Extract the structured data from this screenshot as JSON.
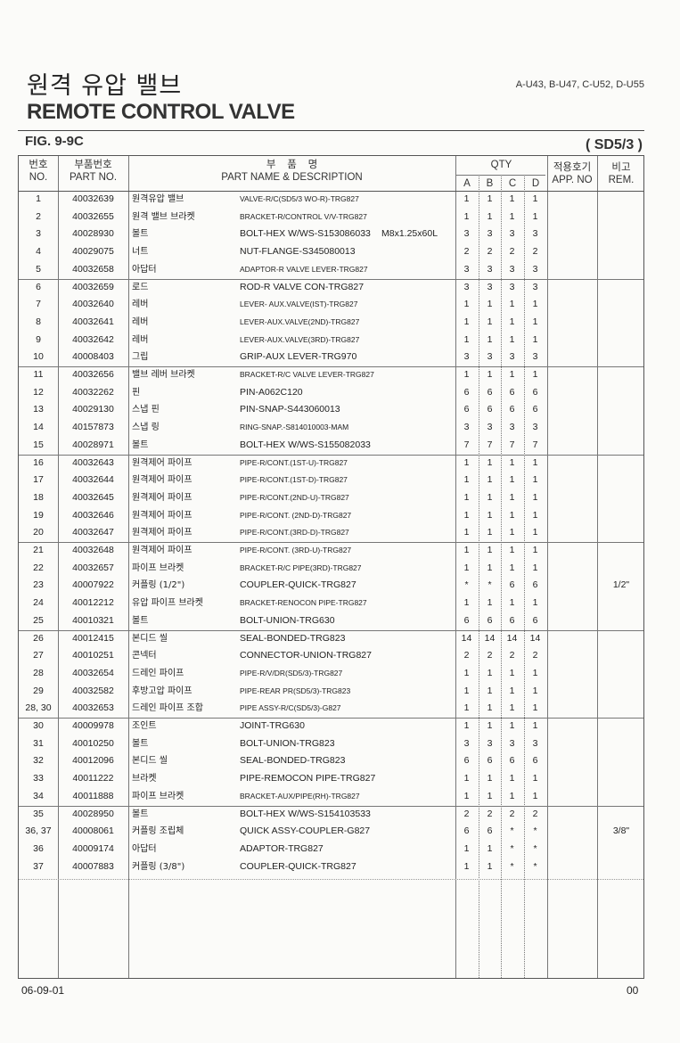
{
  "header": {
    "title_ko": "원격 유압 밸브",
    "title_en": "REMOTE CONTROL VALVE",
    "models": "A-U43, B-U47, C-U52, D-U55",
    "figure": "FIG. 9-9C",
    "variant": "( SD5/3 )"
  },
  "columns": {
    "no_ko": "번호",
    "no_en": "NO.",
    "part_ko": "부품번호",
    "part_en": "PART NO.",
    "name_ko": "부    품    명",
    "name_en": "PART NAME & DESCRIPTION",
    "qty": "QTY",
    "a": "A",
    "b": "B",
    "c": "C",
    "d": "D",
    "app_ko": "적용호기",
    "app_en": "APP. NO",
    "rem_ko": "비고",
    "rem_en": "REM."
  },
  "rows": [
    [
      "1",
      "40032639",
      "원격유압 밸브",
      "VALVE-R/C(SD5/3 WO-R)-TRG827",
      "",
      "1",
      "1",
      "1",
      "1",
      ""
    ],
    [
      "2",
      "40032655",
      "원격 밸브 브라켓",
      "BRACKET-R/CONTROL V/V-TRG827",
      "",
      "1",
      "1",
      "1",
      "1",
      ""
    ],
    [
      "3",
      "40028930",
      "볼트",
      "BOLT-HEX W/WS-S153086033",
      "M8x1.25x60L",
      "3",
      "3",
      "3",
      "3",
      ""
    ],
    [
      "4",
      "40029075",
      "너트",
      "NUT-FLANGE-S345080013",
      "",
      "2",
      "2",
      "2",
      "2",
      ""
    ],
    [
      "5",
      "40032658",
      "아답터",
      "ADAPTOR-R VALVE LEVER-TRG827",
      "",
      "3",
      "3",
      "3",
      "3",
      ""
    ],
    [
      "6",
      "40032659",
      "로드",
      "ROD-R VALVE CON-TRG827",
      "",
      "3",
      "3",
      "3",
      "3",
      ""
    ],
    [
      "7",
      "40032640",
      "레버",
      "LEVER- AUX.VALVE(IST)-TRG827",
      "",
      "1",
      "1",
      "1",
      "1",
      ""
    ],
    [
      "8",
      "40032641",
      "레버",
      "LEVER-AUX.VALVE(2ND)-TRG827",
      "",
      "1",
      "1",
      "1",
      "1",
      ""
    ],
    [
      "9",
      "40032642",
      "레버",
      "LEVER-AUX.VALVE(3RD)-TRG827",
      "",
      "1",
      "1",
      "1",
      "1",
      ""
    ],
    [
      "10",
      "40008403",
      "그립",
      "GRIP-AUX LEVER-TRG970",
      "",
      "3",
      "3",
      "3",
      "3",
      ""
    ],
    [
      "11",
      "40032656",
      "밸브 레버 브라켓",
      "BRACKET-R/C VALVE LEVER-TRG827",
      "",
      "1",
      "1",
      "1",
      "1",
      ""
    ],
    [
      "12",
      "40032262",
      "핀",
      "PIN-A062C120",
      "",
      "6",
      "6",
      "6",
      "6",
      ""
    ],
    [
      "13",
      "40029130",
      "스냅 핀",
      "PIN-SNAP-S443060013",
      "",
      "6",
      "6",
      "6",
      "6",
      ""
    ],
    [
      "14",
      "40157873",
      "스냅 링",
      "RING-SNAP.-S814010003-MAM",
      "",
      "3",
      "3",
      "3",
      "3",
      ""
    ],
    [
      "15",
      "40028971",
      "볼트",
      "BOLT-HEX W/WS-S155082033",
      "",
      "7",
      "7",
      "7",
      "7",
      ""
    ],
    [
      "16",
      "40032643",
      "원격제어 파이프",
      "PIPE-R/CONT.(1ST-U)-TRG827",
      "",
      "1",
      "1",
      "1",
      "1",
      ""
    ],
    [
      "17",
      "40032644",
      "원격제어 파이프",
      "PIPE-R/CONT.(1ST-D)-TRG827",
      "",
      "1",
      "1",
      "1",
      "1",
      ""
    ],
    [
      "18",
      "40032645",
      "원격제어 파이프",
      "PIPE-R/CONT.(2ND-U)-TRG827",
      "",
      "1",
      "1",
      "1",
      "1",
      ""
    ],
    [
      "19",
      "40032646",
      "원격제어 파이프",
      "PIPE-R/CONT. (2ND-D)-TRG827",
      "",
      "1",
      "1",
      "1",
      "1",
      ""
    ],
    [
      "20",
      "40032647",
      "원격제어 파이프",
      "PIPE-R/CONT.(3RD-D)-TRG827",
      "",
      "1",
      "1",
      "1",
      "1",
      ""
    ],
    [
      "21",
      "40032648",
      "원격제어 파이프",
      "PIPE-R/CONT. (3RD-U)-TRG827",
      "",
      "1",
      "1",
      "1",
      "1",
      ""
    ],
    [
      "22",
      "40032657",
      "파이프 브라켓",
      "BRACKET-R/C PIPE(3RD)-TRG827",
      "",
      "1",
      "1",
      "1",
      "1",
      ""
    ],
    [
      "23",
      "40007922",
      "커플링 (1/2\")",
      "COUPLER-QUICK-TRG827",
      "",
      "*",
      "*",
      "6",
      "6",
      "1/2\""
    ],
    [
      "24",
      "40012212",
      "유압 파이프 브라켓",
      "BRACKET-RENOCON PIPE-TRG827",
      "",
      "1",
      "1",
      "1",
      "1",
      ""
    ],
    [
      "25",
      "40010321",
      "볼트",
      "BOLT-UNION-TRG630",
      "",
      "6",
      "6",
      "6",
      "6",
      ""
    ],
    [
      "26",
      "40012415",
      "본디드 씰",
      "SEAL-BONDED-TRG823",
      "",
      "14",
      "14",
      "14",
      "14",
      ""
    ],
    [
      "27",
      "40010251",
      "콘넥터",
      "CONNECTOR-UNION-TRG827",
      "",
      "2",
      "2",
      "2",
      "2",
      ""
    ],
    [
      "28",
      "40032654",
      "드레인 파이프",
      "PIPE-R/V/DR(SD5/3)-TRG827",
      "",
      "1",
      "1",
      "1",
      "1",
      ""
    ],
    [
      "29",
      "40032582",
      "후방고압 파이프",
      "PIPE-REAR PR(SD5/3)-TRG823",
      "",
      "1",
      "1",
      "1",
      "1",
      ""
    ],
    [
      "28, 30",
      "40032653",
      "드레인 파이프 조합",
      "PIPE ASSY-R/C(SD5/3)-G827",
      "",
      "1",
      "1",
      "1",
      "1",
      ""
    ],
    [
      "30",
      "40009978",
      "조인트",
      "JOINT-TRG630",
      "",
      "1",
      "1",
      "1",
      "1",
      ""
    ],
    [
      "31",
      "40010250",
      "볼트",
      "BOLT-UNION-TRG823",
      "",
      "3",
      "3",
      "3",
      "3",
      ""
    ],
    [
      "32",
      "40012096",
      "본디드 씰",
      "SEAL-BONDED-TRG823",
      "",
      "6",
      "6",
      "6",
      "6",
      ""
    ],
    [
      "33",
      "40011222",
      "브라켓",
      "PIPE-REMOCON PIPE-TRG827",
      "",
      "1",
      "1",
      "1",
      "1",
      ""
    ],
    [
      "34",
      "40011888",
      "파이프 브라켓",
      "BRACKET-AUX/PIPE(RH)-TRG827",
      "",
      "1",
      "1",
      "1",
      "1",
      ""
    ],
    [
      "35",
      "40028950",
      "볼트",
      "BOLT-HEX W/WS-S154103533",
      "",
      "2",
      "2",
      "2",
      "2",
      ""
    ],
    [
      "36, 37",
      "40008061",
      "커플링 조립체",
      "QUICK ASSY-COUPLER-G827",
      "",
      "6",
      "6",
      "*",
      "*",
      "3/8\""
    ],
    [
      "36",
      "40009174",
      "아답터",
      "ADAPTOR-TRG827",
      "",
      "1",
      "1",
      "*",
      "*",
      ""
    ],
    [
      "37",
      "40007883",
      "커플링 (3/8\")",
      "COUPLER-QUICK-TRG827",
      "",
      "1",
      "1",
      "*",
      "*",
      ""
    ]
  ],
  "footer": {
    "date": "06-09-01",
    "page": "00"
  }
}
